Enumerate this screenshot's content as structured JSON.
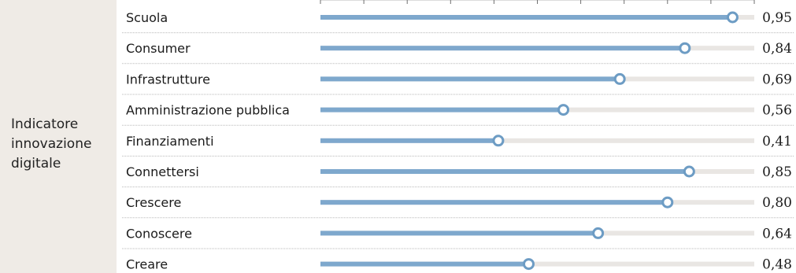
{
  "side_label": "Indicatore\ninnovazione\ndigitale",
  "colors": {
    "panel_background": "#efebe6",
    "track": "#e9e6e3",
    "bar": "#7ea8cd",
    "marker_stroke": "#6d9cc4",
    "marker_fill": "#ffffff",
    "divider": "#b9b9b9"
  },
  "chart_data": {
    "type": "bar",
    "orientation": "horizontal",
    "xlim": [
      0,
      1
    ],
    "grid": false,
    "categories": [
      "Scuola",
      "Consumer",
      "Infrastrutture",
      "Amministrazione pubblica",
      "Finanziamenti",
      "Connettersi",
      "Crescere",
      "Conoscere",
      "Creare"
    ],
    "values": [
      0.95,
      0.84,
      0.69,
      0.56,
      0.41,
      0.85,
      0.8,
      0.64,
      0.48
    ],
    "value_labels": [
      "0,95",
      "0,84",
      "0,69",
      "0,56",
      "0,41",
      "0,85",
      "0,80",
      "0,64",
      "0,48"
    ]
  }
}
